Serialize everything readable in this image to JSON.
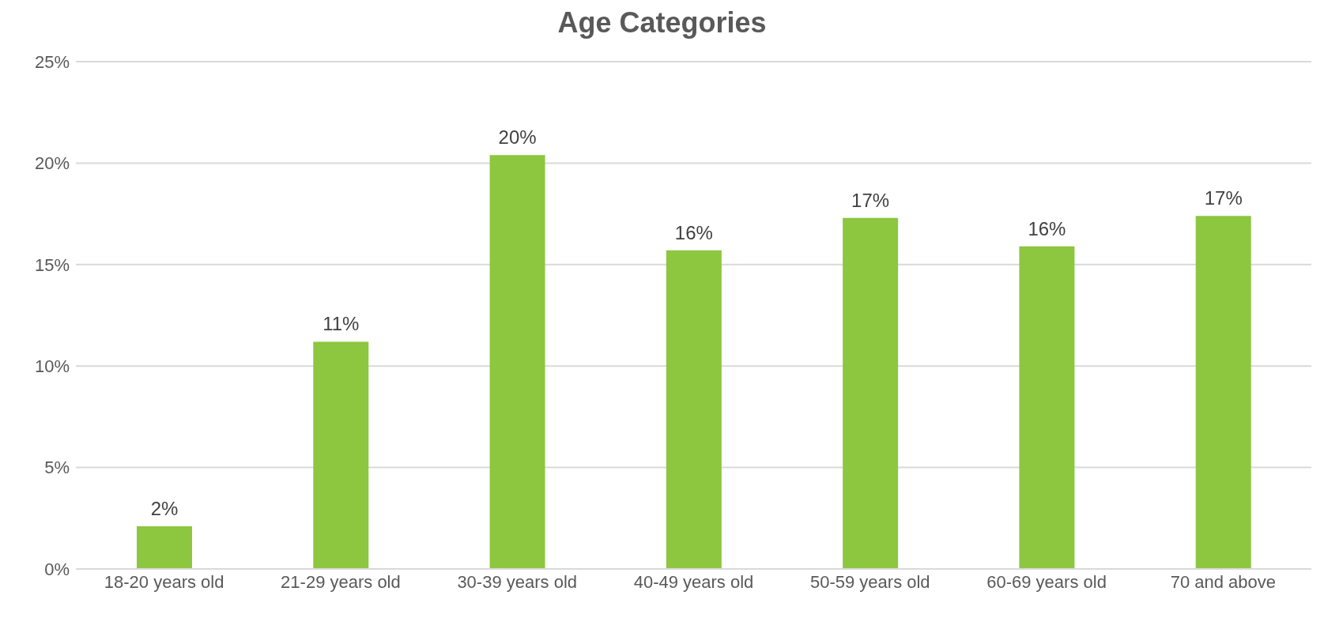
{
  "chart_data": {
    "type": "bar",
    "title": "Age Categories",
    "categories": [
      "18-20 years old",
      "21-29 years old",
      "30-39 years old",
      "40-49 years old",
      "50-59 years old",
      "60-69 years old",
      "70 and above"
    ],
    "values": [
      2.1,
      11.2,
      20.4,
      15.7,
      17.3,
      15.9,
      17.4
    ],
    "value_labels": [
      "2%",
      "11%",
      "20%",
      "16%",
      "17%",
      "16%",
      "17%"
    ],
    "color": "#8dc63f",
    "ylim": [
      0,
      25
    ],
    "yticks": [
      {
        "value": 0,
        "label": "0%"
      },
      {
        "value": 5,
        "label": "5%"
      },
      {
        "value": 10,
        "label": "10%"
      },
      {
        "value": 15,
        "label": "15%"
      },
      {
        "value": 20,
        "label": "20%"
      },
      {
        "value": 25,
        "label": "25%"
      }
    ],
    "grid": "y"
  }
}
